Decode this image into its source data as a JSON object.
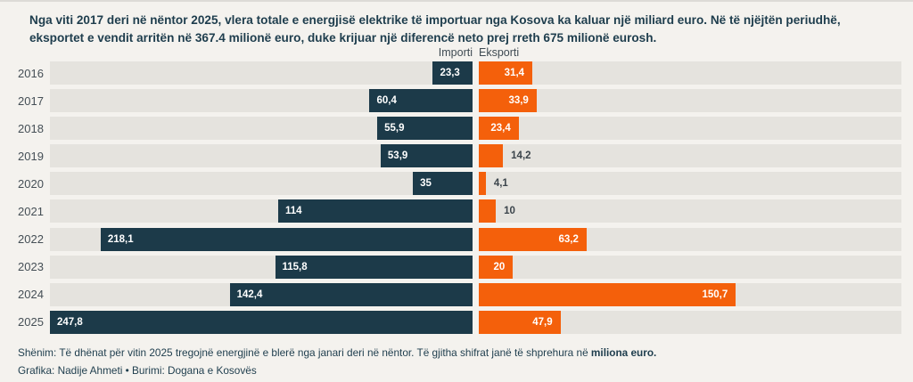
{
  "title": "Nga viti 2017 deri në nëntor 2025, vlera totale e energjisë elektrike të importuar nga Kosova ka kaluar një miliard euro. Në të njëjtën periudhë, eksportet e vendit arritën në 367.4 milionë euro, duke krijuar një diferencë neto prej rreth 675 milionë eurosh.",
  "legend": {
    "import_label": "Importi",
    "export_label": "Eksporti"
  },
  "note": {
    "prefix": "Shënim: Të dhënat për vitin 2025 tregojnë energjinë e blerë nga janari deri në nëntor. Të gjitha shifrat janë të shprehura në ",
    "bold": "miliona euro."
  },
  "credits": "Grafika: Nadije Ahmeti • Burimi: Dogana e Kosovës",
  "colors": {
    "import_bar": "#1c3a49",
    "export_bar": "#f4600b",
    "track": "#e5e3de",
    "background": "#f4f2ee",
    "text": "#1e3d4d"
  },
  "chart_data": {
    "type": "bar",
    "orientation": "diverging-horizontal",
    "unit": "miliona euro",
    "max_scale": 247.8,
    "legend_position": "top-center",
    "categories": [
      "2016",
      "2017",
      "2018",
      "2019",
      "2020",
      "2021",
      "2022",
      "2023",
      "2024",
      "2025"
    ],
    "series": [
      {
        "name": "Importi",
        "values": [
          23.3,
          60.4,
          55.9,
          53.9,
          35,
          114,
          218.1,
          115.8,
          142.4,
          247.8
        ],
        "labels": [
          "23,3",
          "60,4",
          "55,9",
          "53,9",
          "35",
          "114",
          "218,1",
          "115,8",
          "142,4",
          "247,8"
        ],
        "label_inside": [
          true,
          true,
          true,
          true,
          true,
          true,
          true,
          true,
          true,
          true
        ]
      },
      {
        "name": "Eksporti",
        "values": [
          31.4,
          33.9,
          23.4,
          14.2,
          4.1,
          10,
          63.2,
          20,
          150.7,
          47.9
        ],
        "labels": [
          "31,4",
          "33,9",
          "23,4",
          "14,2",
          "4,1",
          "10",
          "63,2",
          "20",
          "150,7",
          "47,9"
        ],
        "label_inside": [
          true,
          true,
          true,
          false,
          false,
          false,
          true,
          true,
          true,
          true
        ]
      }
    ]
  }
}
